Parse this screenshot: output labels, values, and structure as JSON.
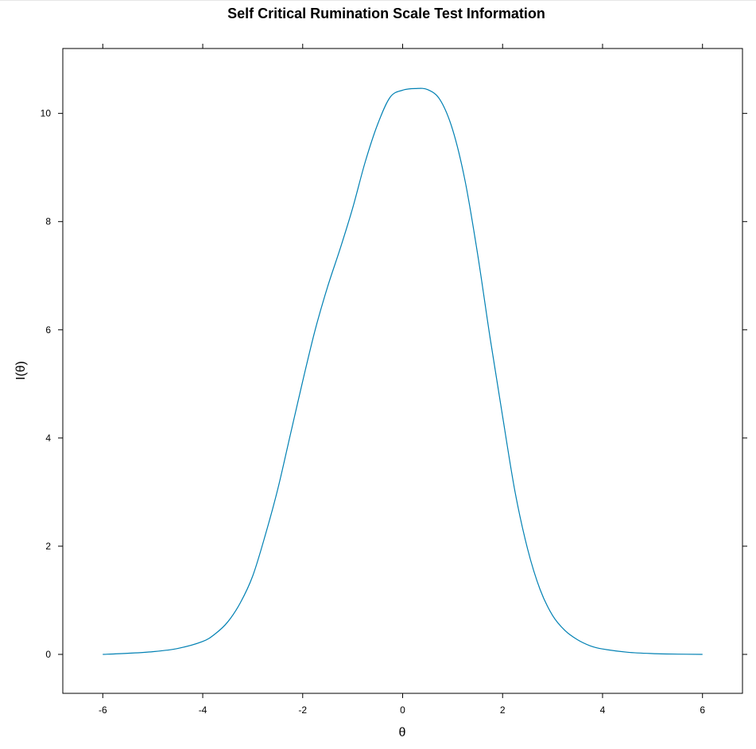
{
  "chart_data": {
    "type": "line",
    "title": "Self Critical Rumination Scale Test Information",
    "xlabel": "θ",
    "ylabel": "I(θ)",
    "xlim": [
      -6.8,
      6.8
    ],
    "ylim": [
      -0.72,
      11.2
    ],
    "xticks": [
      "-6",
      "-4",
      "-2",
      "0",
      "2",
      "4",
      "6"
    ],
    "yticks": [
      "0",
      "2",
      "4",
      "6",
      "8",
      "10"
    ],
    "grid": false,
    "color": "#0080b3",
    "series": [
      {
        "x": [
          -6,
          -5.5,
          -5,
          -4.5,
          -4,
          -3.75,
          -3.5,
          -3.25,
          -3,
          -2.75,
          -2.5,
          -2.25,
          -2,
          -1.75,
          -1.5,
          -1.25,
          -1,
          -0.75,
          -0.5,
          -0.25,
          0,
          0.25,
          0.5,
          0.75,
          1,
          1.25,
          1.5,
          1.75,
          2,
          2.25,
          2.5,
          2.75,
          3,
          3.25,
          3.5,
          3.75,
          4,
          4.5,
          5,
          5.5,
          6
        ],
        "y": [
          0.0,
          0.02,
          0.05,
          0.11,
          0.24,
          0.38,
          0.6,
          0.95,
          1.45,
          2.2,
          3.05,
          4.05,
          5.05,
          6.0,
          6.8,
          7.5,
          8.25,
          9.1,
          9.8,
          10.3,
          10.43,
          10.46,
          10.44,
          10.25,
          9.7,
          8.75,
          7.4,
          5.85,
          4.4,
          3.0,
          1.95,
          1.2,
          0.72,
          0.44,
          0.27,
          0.16,
          0.1,
          0.04,
          0.015,
          0.005,
          0.0
        ]
      }
    ]
  }
}
